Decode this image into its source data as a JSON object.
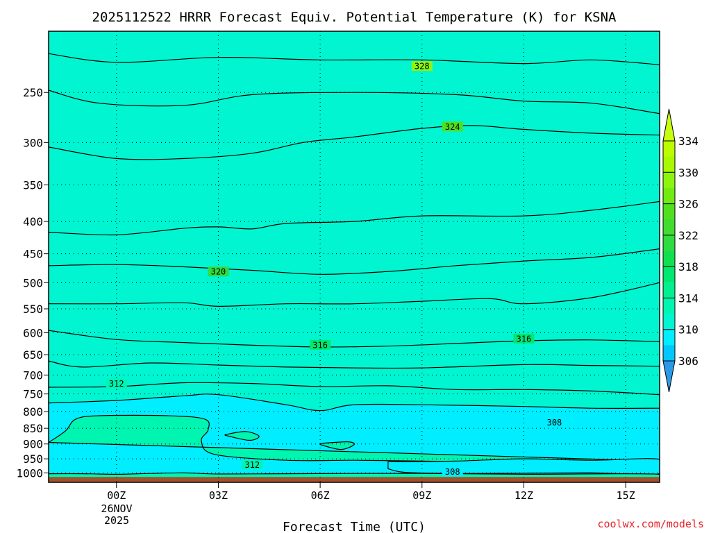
{
  "chart_data": {
    "type": "contour",
    "title": "2025112522 HRRR Forecast Equiv. Potential Temperature (K) for KSNA",
    "xlabel": "Forecast Time (UTC)",
    "ylabel": "",
    "x_ticks": [
      {
        "label": "00Z",
        "hour": 0
      },
      {
        "label": "03Z",
        "hour": 3
      },
      {
        "label": "06Z",
        "hour": 6
      },
      {
        "label": "09Z",
        "hour": 9
      },
      {
        "label": "12Z",
        "hour": 12
      },
      {
        "label": "15Z",
        "hour": 15
      }
    ],
    "date_label_line1": "26NOV",
    "date_label_line2": "2025",
    "xlim": [
      -2,
      16
    ],
    "y_ticks": [
      250,
      300,
      350,
      400,
      450,
      500,
      550,
      600,
      650,
      700,
      750,
      800,
      850,
      900,
      950,
      1000
    ],
    "ylim": [
      200,
      1035
    ],
    "y_scale": "log-pressure",
    "grid": "dotted",
    "contour_interval": 2,
    "colorbar": {
      "levels": [
        306,
        308,
        310,
        312,
        314,
        316,
        318,
        320,
        322,
        324,
        326,
        328,
        330,
        332,
        334
      ],
      "tick_labels": [
        "334",
        "330",
        "326",
        "322",
        "318",
        "314",
        "310",
        "306"
      ],
      "extend": "both",
      "colors": [
        "#2a9ae8",
        "#00c8ff",
        "#00eeff",
        "#00f5d0",
        "#00f5b0",
        "#00f090",
        "#00e870",
        "#10e050",
        "#30dc40",
        "#40dd30",
        "#50e020",
        "#70ec10",
        "#8cf510",
        "#a8f800",
        "#bcfc00",
        "#c8ff10"
      ]
    },
    "contour_labels": [
      {
        "value": "328",
        "hour": 9.0,
        "p": 227
      },
      {
        "value": "324",
        "hour": 9.9,
        "p": 283
      },
      {
        "value": "320",
        "hour": 3.0,
        "p": 480
      },
      {
        "value": "316",
        "hour": 6.0,
        "p": 627
      },
      {
        "value": "316",
        "hour": 12.0,
        "p": 613
      },
      {
        "value": "312",
        "hour": 0.0,
        "p": 722
      },
      {
        "value": "308",
        "hour": 12.9,
        "p": 832
      },
      {
        "value": "312",
        "hour": 4.0,
        "p": 970
      },
      {
        "value": "308",
        "hour": 9.9,
        "p": 995
      }
    ],
    "band_boundaries": [
      {
        "level": 330,
        "x": [
          -2,
          0,
          3,
          6,
          9,
          12,
          14,
          16
        ],
        "p": [
          200,
          200,
          200,
          200,
          200,
          200,
          200,
          200
        ]
      },
      {
        "level": 328,
        "x": [
          -2,
          0,
          3,
          6,
          9,
          12,
          14,
          16
        ],
        "p": [
          217,
          224,
          220,
          222,
          222,
          225,
          222,
          226
        ]
      },
      {
        "level": 326,
        "x": [
          -2,
          -0.5,
          2,
          4,
          7,
          10,
          12,
          14,
          16
        ],
        "p": [
          248,
          260,
          262,
          252,
          250,
          252,
          258,
          260,
          270
        ]
      },
      {
        "level": 324,
        "x": [
          -2,
          0,
          2,
          4,
          5.5,
          7,
          9,
          10.5,
          12,
          14,
          16
        ],
        "p": [
          305,
          318,
          318,
          312,
          300,
          294,
          285,
          282,
          286,
          290,
          292
        ]
      },
      {
        "level": 322,
        "x": [
          -2,
          0,
          2,
          3,
          4,
          5,
          7,
          9,
          12,
          14,
          16
        ],
        "p": [
          416,
          420,
          410,
          408,
          411,
          403,
          400,
          392,
          392,
          384,
          372
        ]
      },
      {
        "level": 320,
        "x": [
          -2,
          0,
          2,
          4,
          6,
          8,
          10,
          12,
          14,
          16
        ],
        "p": [
          470,
          468,
          472,
          478,
          485,
          480,
          470,
          462,
          456,
          442
        ]
      },
      {
        "level": 318,
        "x": [
          -2,
          0,
          2,
          3,
          5,
          7,
          9,
          11,
          12,
          14,
          16
        ],
        "p": [
          540,
          540,
          538,
          545,
          540,
          540,
          535,
          530,
          540,
          528,
          500
        ]
      },
      {
        "level": 316,
        "x": [
          -2,
          0,
          2,
          4,
          6,
          8,
          10,
          12,
          14,
          16
        ],
        "p": [
          595,
          615,
          622,
          628,
          632,
          630,
          624,
          618,
          616,
          620
        ]
      },
      {
        "level": 314,
        "x": [
          -2,
          -1,
          1,
          3,
          5,
          7,
          9,
          12,
          14,
          16
        ],
        "p": [
          665,
          680,
          670,
          675,
          680,
          682,
          682,
          674,
          676,
          678
        ]
      },
      {
        "level": 312,
        "x": [
          -2,
          0,
          2,
          4,
          6,
          8,
          10,
          12,
          14,
          16
        ],
        "p": [
          732,
          730,
          720,
          722,
          730,
          728,
          738,
          738,
          742,
          752
        ]
      },
      {
        "level": 310,
        "x": [
          -2,
          0,
          2,
          3,
          5,
          6,
          7,
          9,
          12,
          14,
          16
        ],
        "p": [
          775,
          768,
          755,
          752,
          780,
          797,
          780,
          780,
          785,
          790,
          790
        ]
      }
    ],
    "regions": [
      {
        "level": 312,
        "x": [
          -2,
          -1.5,
          -1.2,
          -0.5,
          1.5,
          2.6,
          2.7,
          2.5,
          2.9,
          5,
          7,
          9,
          12,
          15,
          16
        ],
        "p": [
          895,
          858,
          822,
          812,
          812,
          822,
          855,
          890,
          935,
          955,
          955,
          958,
          960,
          955,
          958
        ]
      },
      {
        "level": 312,
        "x": [
          3.2,
          3.8,
          4.2,
          3.9,
          3.2
        ],
        "p": [
          870,
          860,
          875,
          888,
          872
        ]
      },
      {
        "level": 312,
        "x": [
          6.0,
          6.8,
          7.0,
          6.6,
          6.0
        ],
        "p": [
          898,
          893,
          902,
          918,
          902
        ]
      },
      {
        "level": 308,
        "x": [
          8.0,
          10,
          12,
          14,
          16,
          16,
          14,
          12,
          10,
          8.5,
          8.0
        ],
        "p": [
          960,
          958,
          950,
          955,
          952,
          1003,
          1000,
          1001,
          1002,
          998,
          985
        ]
      },
      {
        "level": 312,
        "x": [
          -2,
          -1,
          0,
          1,
          2,
          3,
          5,
          7,
          9,
          12,
          16,
          16,
          -2
        ],
        "p": [
          1003,
          1003,
          1005,
          1002,
          1000,
          1004,
          1003,
          1002,
          1002,
          1005,
          1005,
          1035,
          1035
        ]
      }
    ],
    "ground_level_p": 1015
  },
  "credit": "coolwx.com/models"
}
